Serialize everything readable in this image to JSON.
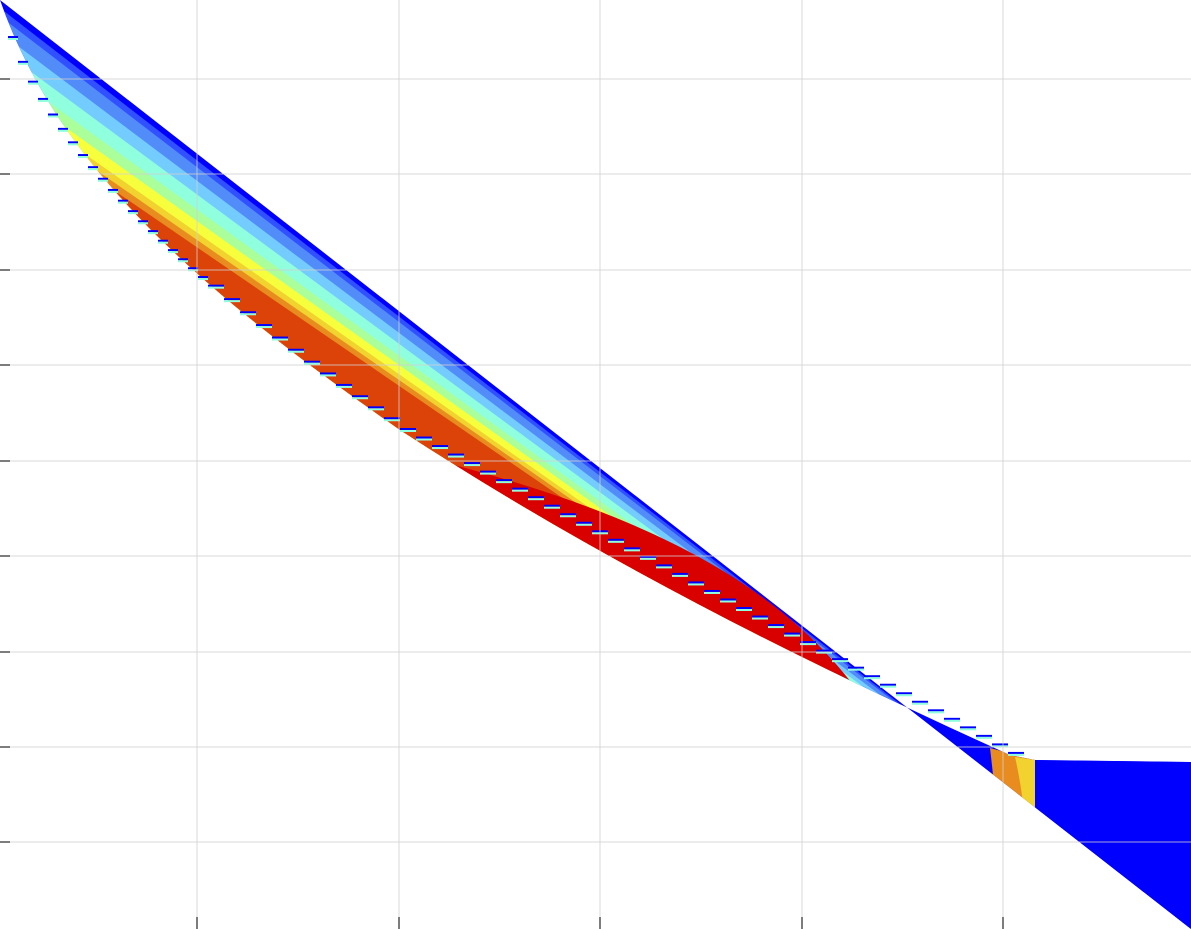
{
  "chart_data": {
    "type": "heatmap",
    "title": "",
    "xlabel": "",
    "ylabel": "",
    "grid": true,
    "colormap": "jet",
    "background_color": "#ffffff",
    "grid_color": "#cfcfcf",
    "levels": [
      {
        "level": 1,
        "color": "#0000ff"
      },
      {
        "level": 2,
        "color": "#3150ff"
      },
      {
        "level": 3,
        "color": "#518cf8"
      },
      {
        "level": 4,
        "color": "#74ccfe"
      },
      {
        "level": 5,
        "color": "#90ffde"
      },
      {
        "level": 6,
        "color": "#aaff9a"
      },
      {
        "level": 7,
        "color": "#f7ff3d"
      },
      {
        "level": 8,
        "color": "#f2d22f"
      },
      {
        "level": 9,
        "color": "#e88c1f"
      },
      {
        "level": 10,
        "color": "#dc4308"
      },
      {
        "level": 11,
        "color": "#d90000"
      },
      {
        "level": 12,
        "color": "#a40000"
      }
    ]
  }
}
